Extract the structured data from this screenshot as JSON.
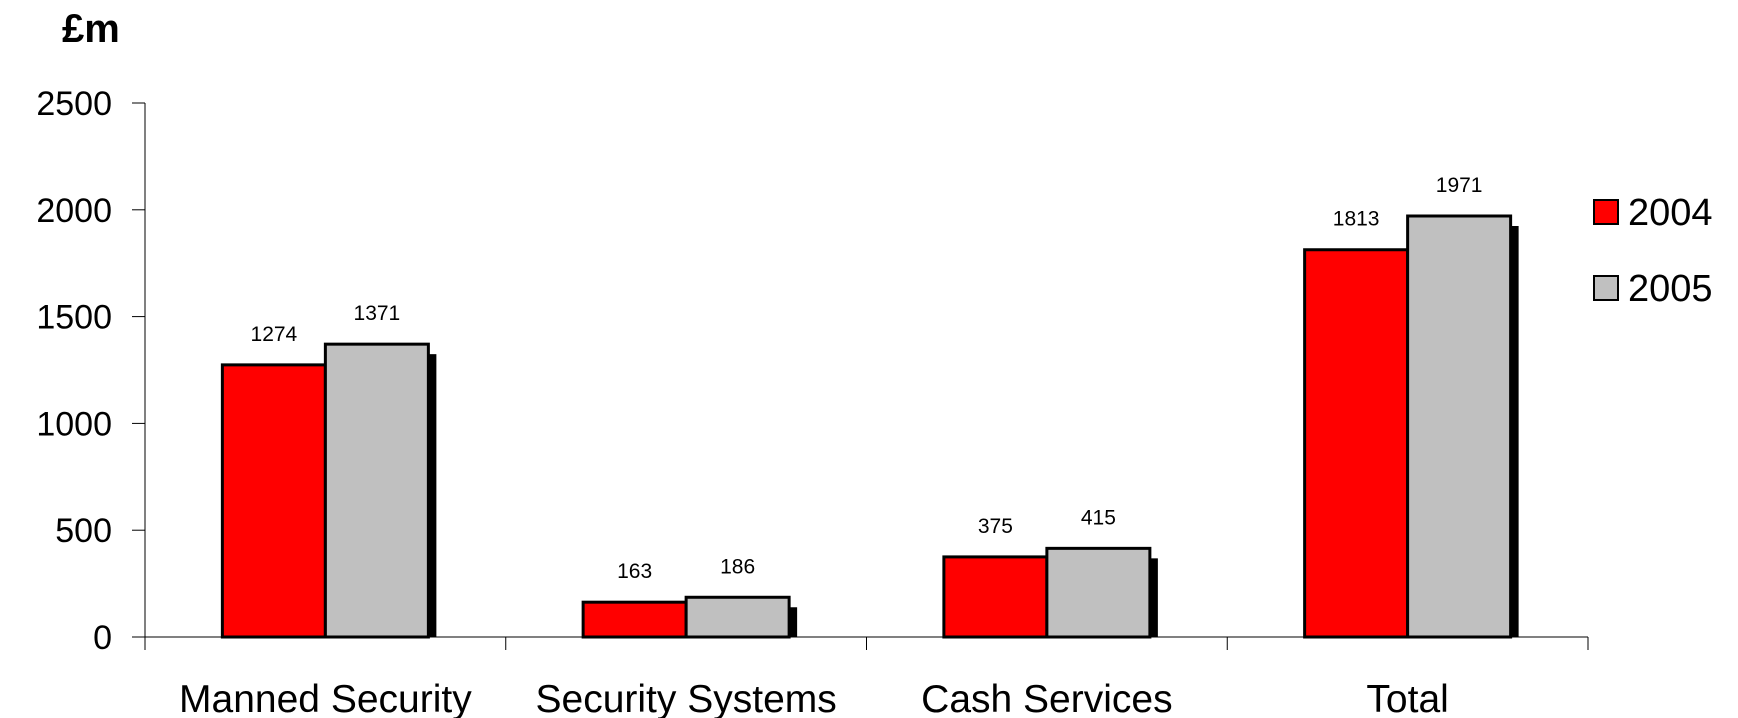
{
  "chart_data": {
    "type": "bar",
    "ylabel": "£m",
    "ylim": [
      0,
      2500
    ],
    "yticks": [
      0,
      500,
      1000,
      1500,
      2000,
      2500
    ],
    "categories": [
      "Manned Security",
      "Security Systems",
      "Cash Services",
      "Total"
    ],
    "series": [
      {
        "name": "2004",
        "values": [
          1274,
          163,
          375,
          1813
        ],
        "color": "#ff0000"
      },
      {
        "name": "2005",
        "values": [
          1371,
          186,
          415,
          1971
        ],
        "color": "#c0c0c0"
      }
    ],
    "shadow_color": "#000000",
    "legend_position": "right",
    "grid": false
  }
}
